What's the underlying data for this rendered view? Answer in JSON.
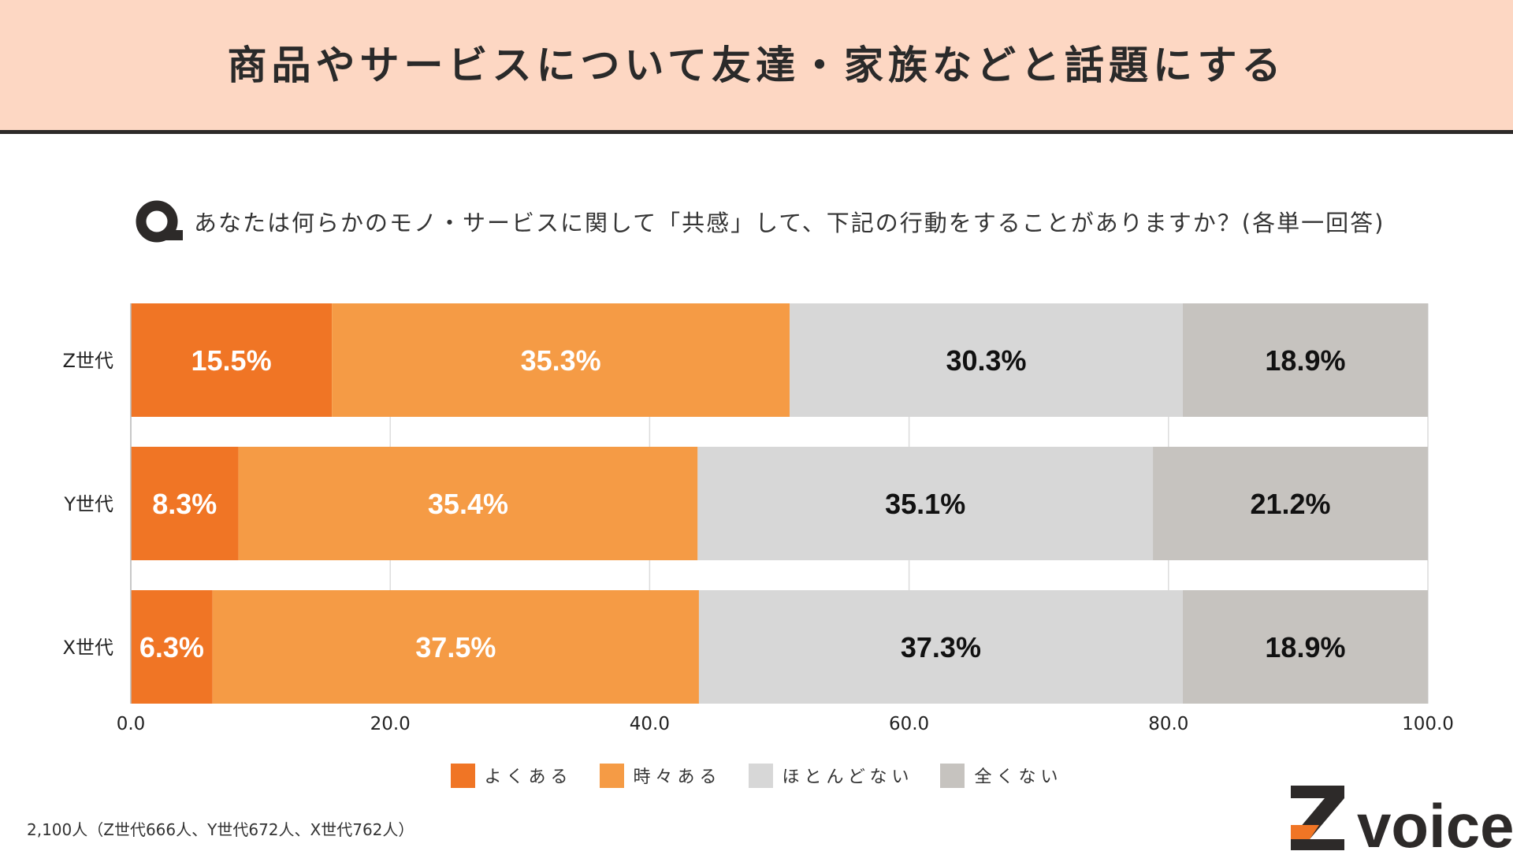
{
  "header": {
    "title": "商品やサービスについて友達・家族などと話題にする"
  },
  "question": {
    "text": "あなたは何らかのモノ・サービスに関して「共感」して、下記の行動をすることがありますか？(各単一回答)"
  },
  "footer": {
    "sample_note": "2,100人（Z世代666人、Y世代672人、X世代762人）"
  },
  "logo": {
    "text": "Zvoice"
  },
  "colors": {
    "header_bg": "#fdd7c3",
    "often": "#f07525",
    "sometimes": "#f59b45",
    "rarely": "#d7d7d7",
    "never": "#c6c3bf",
    "dark": "#2d2a29"
  },
  "chart_data": {
    "type": "bar",
    "orientation": "horizontal",
    "stacked": true,
    "categories": [
      "Z世代",
      "Y世代",
      "X世代"
    ],
    "series": [
      {
        "name": "よくある",
        "color": "#f07525",
        "label_color": "#ffffff",
        "values": [
          15.5,
          8.3,
          6.3
        ],
        "labels": [
          "15.5%",
          "8.3%",
          "6.3%"
        ]
      },
      {
        "name": "時々ある",
        "color": "#f59b45",
        "label_color": "#ffffff",
        "values": [
          35.3,
          35.4,
          37.5
        ],
        "labels": [
          "35.3%",
          "35.4%",
          "37.5%"
        ]
      },
      {
        "name": "ほとんどない",
        "color": "#d7d7d7",
        "label_color": "#111111",
        "values": [
          30.3,
          35.1,
          37.3
        ],
        "labels": [
          "30.3%",
          "35.1%",
          "37.3%"
        ]
      },
      {
        "name": "全くない",
        "color": "#c6c3bf",
        "label_color": "#111111",
        "values": [
          18.9,
          21.2,
          18.9
        ],
        "labels": [
          "18.9%",
          "21.2%",
          "18.9%"
        ]
      }
    ],
    "xlim": [
      0,
      100
    ],
    "xticks": [
      "0.0",
      "20.0",
      "40.0",
      "60.0",
      "80.0",
      "100.0"
    ],
    "grid": true,
    "legend_position": "bottom"
  }
}
